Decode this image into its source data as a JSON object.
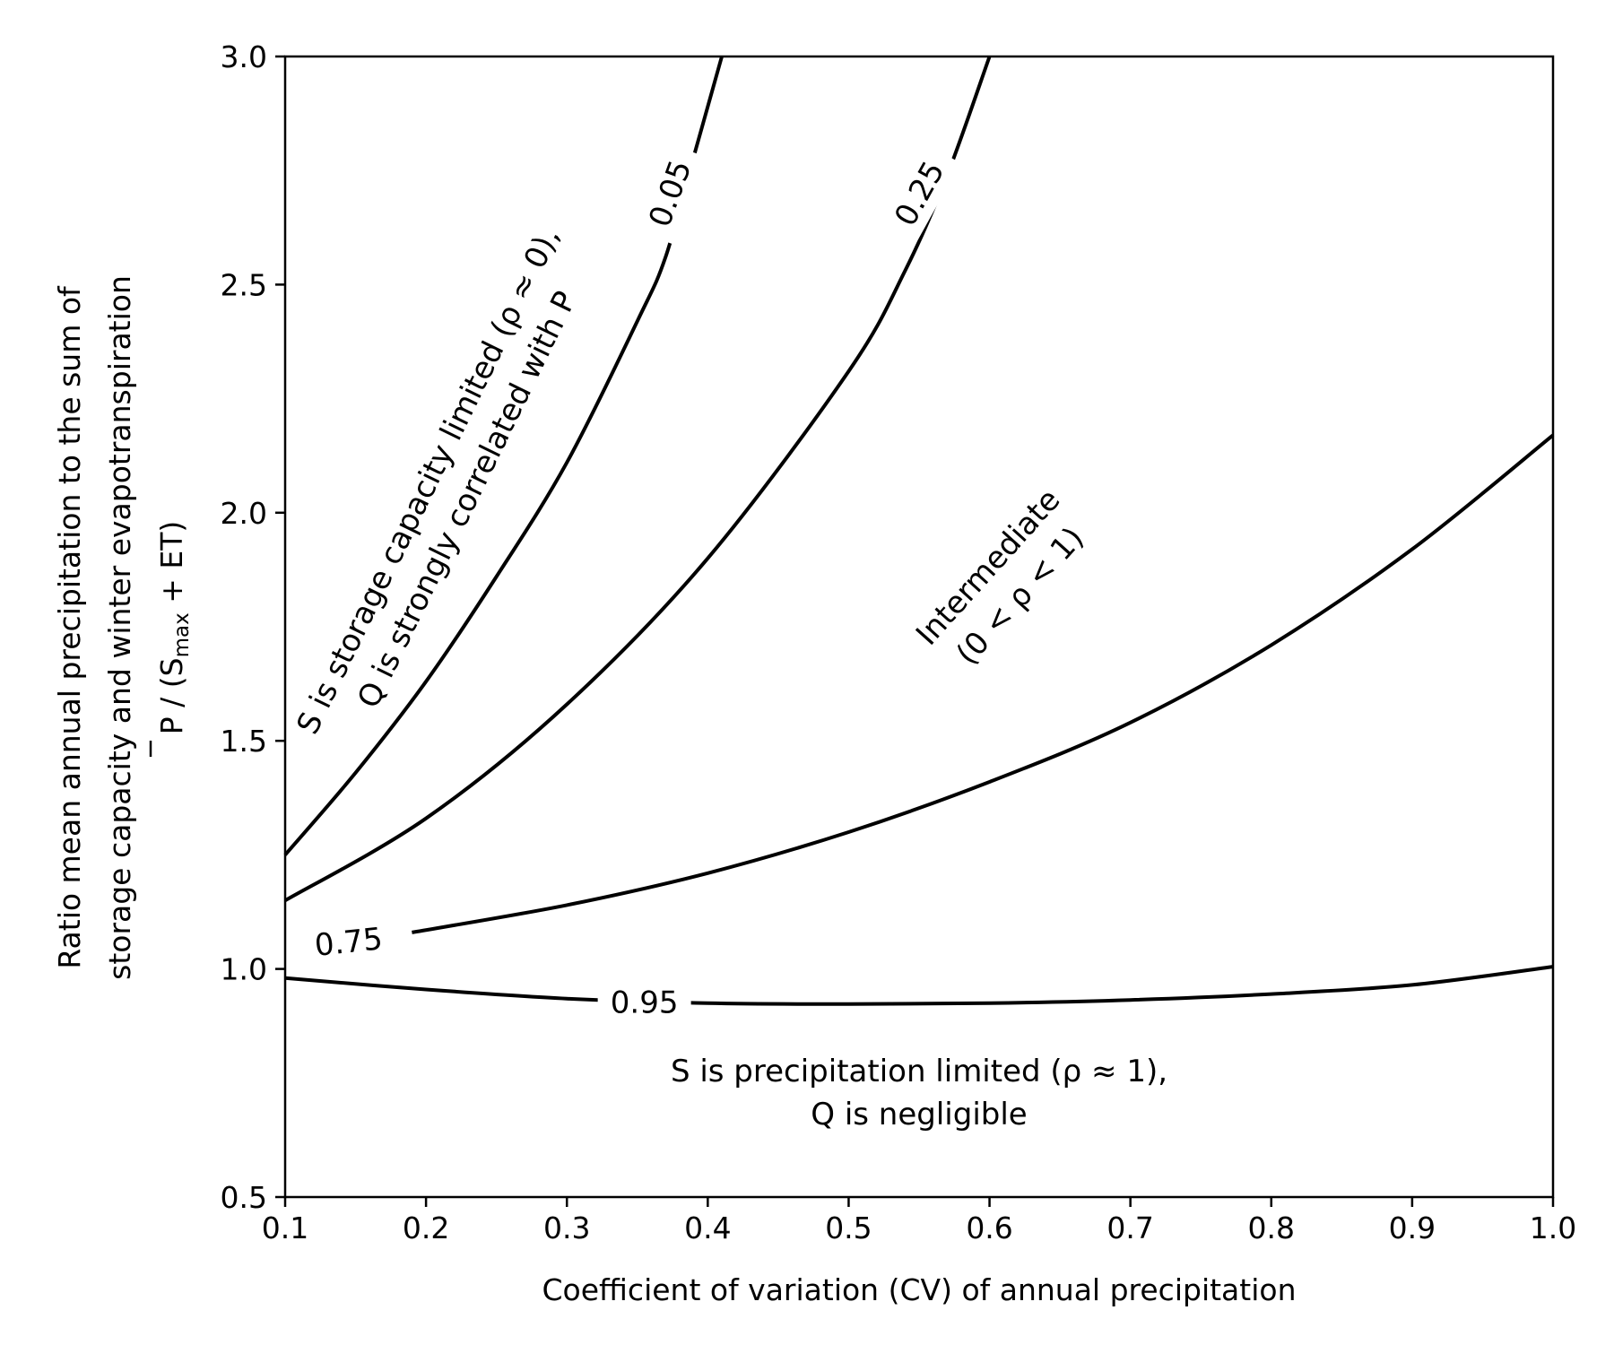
{
  "chart_data": {
    "type": "line",
    "subtype": "contour",
    "title": "",
    "xlabel": "Coefficient of variation (CV) of annual precipitation",
    "ylabel": {
      "line1": "Ratio mean annual precipitation to the sum of",
      "line2": "storage capacity and winter evapotranspiration",
      "line3_prefix": "P / (S",
      "line3_sub": "max",
      "line3_suffix": " + ET)"
    },
    "xlim": [
      0.1,
      1.0
    ],
    "ylim": [
      0.5,
      3.0
    ],
    "xticks": [
      "0.1",
      "0.2",
      "0.3",
      "0.4",
      "0.5",
      "0.6",
      "0.7",
      "0.8",
      "0.9",
      "1.0"
    ],
    "yticks": [
      "0.5",
      "1.0",
      "1.5",
      "2.0",
      "2.5",
      "3.0"
    ],
    "grid": false,
    "series": [
      {
        "name": "0.05",
        "points": [
          [
            0.1,
            1.25
          ],
          [
            0.15,
            1.43
          ],
          [
            0.2,
            1.63
          ],
          [
            0.25,
            1.86
          ],
          [
            0.3,
            2.11
          ],
          [
            0.35,
            2.42
          ],
          [
            0.37,
            2.56
          ],
          [
            0.39,
            2.78
          ],
          [
            0.41,
            3.0
          ]
        ]
      },
      {
        "name": "0.25",
        "points": [
          [
            0.1,
            1.15
          ],
          [
            0.2,
            1.33
          ],
          [
            0.3,
            1.58
          ],
          [
            0.4,
            1.9
          ],
          [
            0.5,
            2.31
          ],
          [
            0.54,
            2.53
          ],
          [
            0.57,
            2.74
          ],
          [
            0.6,
            3.0
          ]
        ]
      },
      {
        "name": "0.75",
        "points": [
          [
            0.19,
            1.08
          ],
          [
            0.3,
            1.14
          ],
          [
            0.4,
            1.21
          ],
          [
            0.5,
            1.3
          ],
          [
            0.6,
            1.41
          ],
          [
            0.7,
            1.54
          ],
          [
            0.8,
            1.71
          ],
          [
            0.9,
            1.92
          ],
          [
            1.0,
            2.17
          ]
        ]
      },
      {
        "name": "0.95",
        "points": [
          [
            0.1,
            0.98
          ],
          [
            0.2,
            0.955
          ],
          [
            0.3,
            0.935
          ],
          [
            0.4,
            0.925
          ],
          [
            0.5,
            0.923
          ],
          [
            0.6,
            0.925
          ],
          [
            0.7,
            0.932
          ],
          [
            0.8,
            0.945
          ],
          [
            0.9,
            0.965
          ],
          [
            1.0,
            1.005
          ]
        ]
      }
    ],
    "contour_labels": [
      {
        "text": "0.05",
        "x": 0.373,
        "y": 2.7,
        "rotation": -70
      },
      {
        "text": "0.25",
        "x": 0.55,
        "y": 2.7,
        "rotation": -61
      },
      {
        "text": "0.75",
        "x": 0.145,
        "y": 1.06,
        "rotation": -6
      },
      {
        "text": "0.95",
        "x": 0.355,
        "y": 0.927,
        "rotation": 0
      }
    ],
    "annotations": [
      {
        "lines": [
          "S is storage capacity limited (ρ ≈ 0),",
          "Q is strongly correlated with P"
        ],
        "x": 0.215,
        "y": 2.05,
        "rotation": -64
      },
      {
        "lines": [
          "Intermediate",
          "(0 < ρ < 1)"
        ],
        "x": 0.61,
        "y": 1.85,
        "rotation": -48
      },
      {
        "lines": [
          "S is precipitation limited (ρ ≈ 1),",
          "Q is negligible"
        ],
        "x": 0.55,
        "y": 0.73,
        "rotation": 0
      }
    ]
  }
}
